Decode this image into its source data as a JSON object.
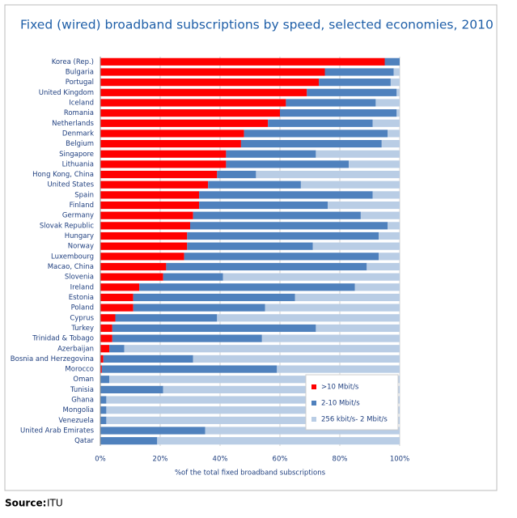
{
  "chart_data": {
    "type": "stacked-bar-horizontal",
    "title": "Fixed (wired) broadband subscriptions by speed, selected economies, 2010",
    "x_label": "%of the total fixed broadband subscriptions",
    "source_label": "Source:",
    "source": "ITU",
    "categories": [
      "Korea (Rep.)",
      "Bulgaria",
      "Portugal",
      "United Kingdom",
      "Iceland",
      "Romania",
      "Netherlands",
      "Denmark",
      "Belgium",
      "Singapore",
      "Lithuania",
      "Hong Kong, China",
      "United States",
      "Spain",
      "Finland",
      "Germany",
      "Slovak Republic",
      "Hungary",
      "Norway",
      "Luxembourg",
      "Macao, China",
      "Slovenia",
      "Ireland",
      "Estonia",
      "Poland",
      "Cyprus",
      "Turkey",
      "Trinidad & Tobago",
      "Azerbaijan",
      "Bosnia and Herzegovina",
      "Morocco",
      "Oman",
      "Tunisia",
      "Ghana",
      "Mongolia",
      "Venezuela",
      "United Arab Emirates",
      "Qatar"
    ],
    "series": [
      {
        "name": ">10 Mbit/s",
        "color": "#ff0000",
        "values": [
          95,
          75,
          73,
          69,
          62,
          60,
          56,
          48,
          47,
          42,
          42,
          39,
          36,
          33,
          33,
          31,
          30,
          29,
          29,
          28,
          22,
          21,
          13,
          11,
          11,
          5,
          4,
          4,
          3,
          1,
          0.5,
          0,
          0,
          0,
          0,
          0,
          0,
          0
        ]
      },
      {
        "name": "2-10 Mbit/s",
        "color": "#4f81bd",
        "values": [
          5,
          23,
          24,
          30,
          30,
          39,
          35,
          48,
          47,
          30,
          41,
          13,
          31,
          58,
          43,
          56,
          66,
          64,
          42,
          65,
          67,
          20,
          72,
          54,
          44,
          34,
          68,
          50,
          5,
          30,
          58.5,
          3,
          21,
          2,
          2,
          2,
          35,
          19
        ]
      },
      {
        "name": "256 kbit/s- 2 Mbit/s",
        "color": "#b9cde5",
        "values": [
          0,
          2,
          3,
          1,
          8,
          1,
          9,
          4,
          6,
          28,
          17,
          48,
          33,
          9,
          24,
          13,
          4,
          7,
          29,
          7,
          11,
          59,
          15,
          35,
          45,
          61,
          28,
          46,
          92,
          69,
          41,
          97,
          79,
          98,
          98,
          98,
          65,
          81
        ]
      }
    ],
    "xlim": [
      0,
      100
    ],
    "xticks": [
      {
        "value": 0,
        "label": "0%"
      },
      {
        "value": 20,
        "label": "20%"
      },
      {
        "value": 40,
        "label": "40%"
      },
      {
        "value": 60,
        "label": "60%"
      },
      {
        "value": 80,
        "label": "80%"
      },
      {
        "value": 100,
        "label": "100%"
      }
    ],
    "grid": true
  }
}
